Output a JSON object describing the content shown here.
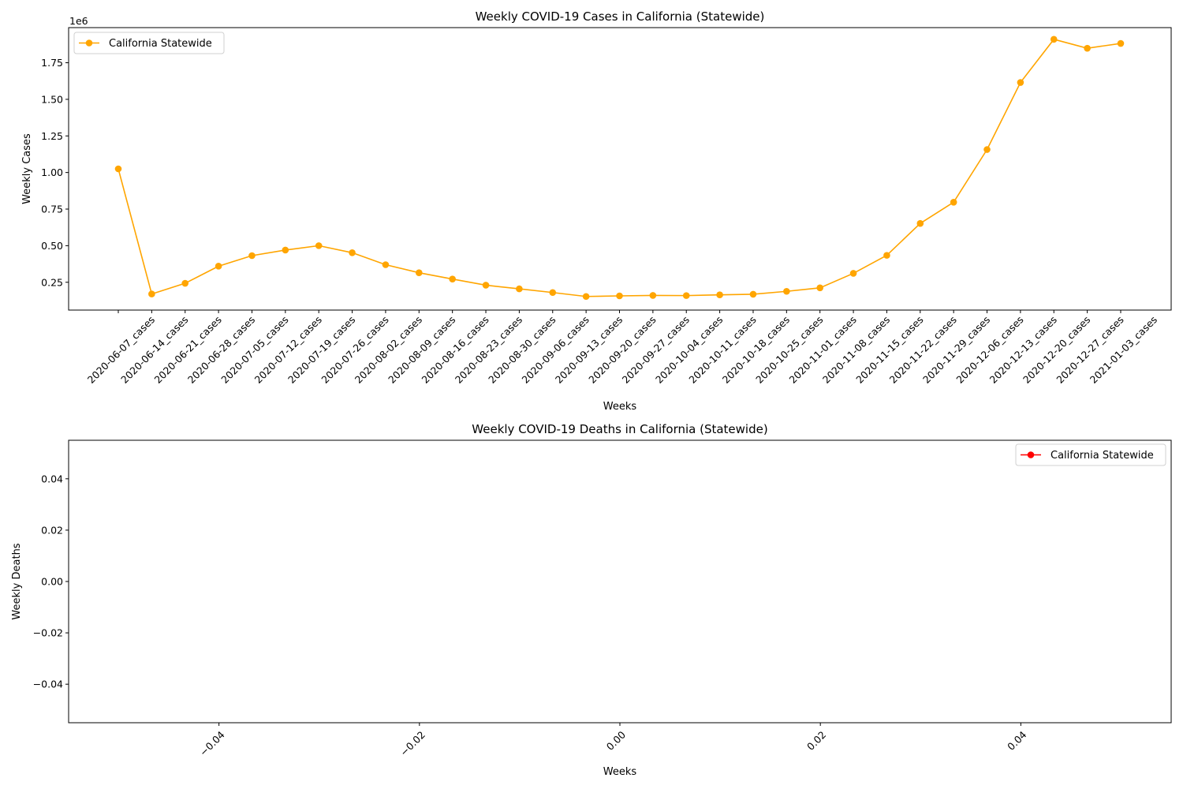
{
  "chart_data": [
    {
      "type": "line",
      "title": "Weekly COVID-19 Cases in California (Statewide)",
      "xlabel": "Weeks",
      "ylabel": "Weekly Cases",
      "y_scale_label": "1e6",
      "categories": [
        "2020-06-07_cases",
        "2020-06-14_cases",
        "2020-06-21_cases",
        "2020-06-28_cases",
        "2020-07-05_cases",
        "2020-07-12_cases",
        "2020-07-19_cases",
        "2020-07-26_cases",
        "2020-08-02_cases",
        "2020-08-09_cases",
        "2020-08-16_cases",
        "2020-08-23_cases",
        "2020-08-30_cases",
        "2020-09-06_cases",
        "2020-09-13_cases",
        "2020-09-20_cases",
        "2020-09-27_cases",
        "2020-10-04_cases",
        "2020-10-11_cases",
        "2020-10-18_cases",
        "2020-10-25_cases",
        "2020-11-01_cases",
        "2020-11-08_cases",
        "2020-11-15_cases",
        "2020-11-22_cases",
        "2020-11-29_cases",
        "2020-12-06_cases",
        "2020-12-13_cases",
        "2020-12-20_cases",
        "2020-12-27_cases",
        "2021-01-03_cases"
      ],
      "series": [
        {
          "name": "California Statewide",
          "color": "#ffa500",
          "marker": "circle",
          "values": [
            1025000,
            170000,
            243000,
            360000,
            432000,
            470000,
            500000,
            452000,
            370000,
            315000,
            272000,
            230000,
            205000,
            180000,
            153000,
            157000,
            160000,
            159000,
            164000,
            168000,
            188000,
            212000,
            311000,
            434000,
            652000,
            797000,
            1157000,
            1615000,
            1910000,
            1849000,
            1882000
          ]
        }
      ],
      "ylim": [
        60000,
        1990000
      ],
      "yticks": [
        250000,
        500000,
        750000,
        1000000,
        1250000,
        1500000,
        1750000
      ],
      "ytick_labels": [
        "0.25",
        "0.50",
        "0.75",
        "1.00",
        "1.25",
        "1.50",
        "1.75"
      ],
      "grid": false,
      "legend_position": "upper-left"
    },
    {
      "type": "line",
      "title": "Weekly COVID-19 Deaths in California (Statewide)",
      "xlabel": "Weeks",
      "ylabel": "Weekly Deaths",
      "series": [
        {
          "name": "California Statewide",
          "color": "#ff0000",
          "marker": "circle",
          "values": []
        }
      ],
      "xlim": [
        -0.055,
        0.055
      ],
      "ylim": [
        -0.055,
        0.055
      ],
      "xticks": [
        -0.04,
        -0.02,
        0.0,
        0.02,
        0.04
      ],
      "xtick_labels": [
        "−0.04",
        "−0.02",
        "0.00",
        "0.02",
        "0.04"
      ],
      "yticks": [
        -0.04,
        -0.02,
        0.0,
        0.02,
        0.04
      ],
      "ytick_labels": [
        "−0.04",
        "−0.02",
        "0.00",
        "0.02",
        "0.04"
      ],
      "grid": false,
      "legend_position": "upper-right"
    }
  ]
}
